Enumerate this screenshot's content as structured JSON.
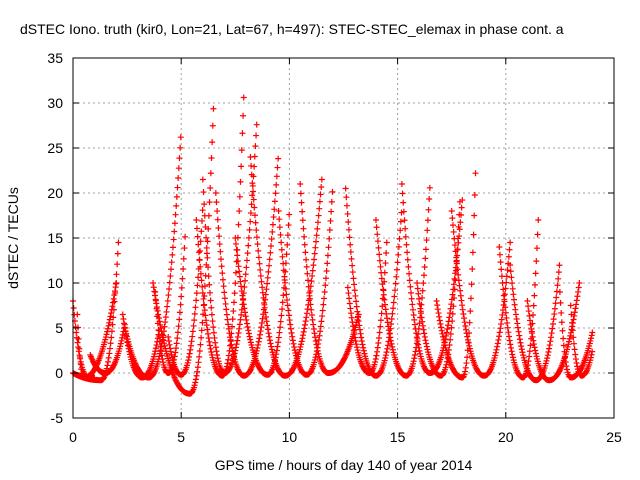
{
  "chart_data": {
    "type": "scatter",
    "title": "dSTEC Iono. truth (kir0, Lon=21, Lat=67, h=497): STEC-STEC_elemax in phase cont. a",
    "xlabel": "GPS time / hours of day 140 of year 2014",
    "ylabel": "dSTEC  / TECUs",
    "xlim": [
      0,
      25
    ],
    "ylim": [
      -5,
      35
    ],
    "xticks": [
      0,
      5,
      10,
      15,
      20,
      25
    ],
    "yticks": [
      -5,
      0,
      5,
      10,
      15,
      20,
      25,
      30,
      35
    ],
    "grid": true,
    "marker": "plus",
    "colors": {
      "series": "#ff0000",
      "grid": "#a0a0a0",
      "axis": "#000000"
    },
    "series": [
      {
        "name": "",
        "arcs": [
          {
            "start": 0.0,
            "end": 1.0,
            "peak_x": 0.7,
            "peak_y": 8.0,
            "min_y": -0.5
          },
          {
            "start": 0.0,
            "end": 2.1,
            "peak_x": 1.3,
            "peak_y": 0.0,
            "min_y": -0.8,
            "end_y": 14.5
          },
          {
            "start": 0.2,
            "end": 2.0,
            "peak_x": 0.5,
            "peak_y": 6.5,
            "min_y": -0.5,
            "end_y": 10.0
          },
          {
            "start": 0.8,
            "end": 2.4,
            "peak_x": 1.5,
            "peak_y": 0.5,
            "min_y": 0.0,
            "end_y": 5.5,
            "start_y": 2.0
          },
          {
            "start": 2.3,
            "end": 4.0,
            "peak_x": 3.2,
            "peak_y": 0.2,
            "min_y": -0.5,
            "start_y": 6.5,
            "end_y": 5.0
          },
          {
            "start": 2.4,
            "end": 5.0,
            "peak_x": 3.5,
            "peak_y": -0.3,
            "min_y": -0.5,
            "start_y": 5.0,
            "end_y": 27.0
          },
          {
            "start": 3.7,
            "end": 6.5,
            "peak_x": 5.4,
            "peak_y": -2.3,
            "min_y": -2.3,
            "start_y": 10.0,
            "end_y": 30.0
          },
          {
            "start": 3.8,
            "end": 5.2,
            "peak_x": 4.4,
            "peak_y": 0.2,
            "min_y": 0.0,
            "start_y": 9.0,
            "end_y": 16.0
          },
          {
            "start": 4.4,
            "end": 6.0,
            "peak_x": 5.0,
            "peak_y": 0.0,
            "min_y": -0.2,
            "start_y": 4.0,
            "end_y": 18.5
          },
          {
            "start": 5.7,
            "end": 7.9,
            "peak_x": 6.9,
            "peak_y": 0.0,
            "min_y": -0.3,
            "start_y": 17.0,
            "end_y": 31.3
          },
          {
            "start": 6.0,
            "end": 8.5,
            "peak_x": 7.0,
            "peak_y": 0.2,
            "min_y": 0.0,
            "start_y": 21.5,
            "end_y": 28.0
          },
          {
            "start": 6.6,
            "end": 9.5,
            "peak_x": 7.9,
            "peak_y": 0.0,
            "min_y": -0.3,
            "start_y": 20.0,
            "end_y": 24.5
          },
          {
            "start": 7.5,
            "end": 10.0,
            "peak_x": 9.0,
            "peak_y": 0.2,
            "min_y": -0.2,
            "start_y": 15.0,
            "end_y": 18.0
          },
          {
            "start": 8.2,
            "end": 11.5,
            "peak_x": 9.8,
            "peak_y": 0.0,
            "min_y": -0.3,
            "start_y": 24.0,
            "end_y": 21.5
          },
          {
            "start": 9.5,
            "end": 12.0,
            "peak_x": 10.8,
            "peak_y": 0.0,
            "min_y": -0.2,
            "start_y": 18.0,
            "end_y": 20.5
          },
          {
            "start": 10.5,
            "end": 13.2,
            "peak_x": 11.8,
            "peak_y": 0.2,
            "min_y": 0.0,
            "start_y": 21.0,
            "end_y": 6.5
          },
          {
            "start": 12.6,
            "end": 15.2,
            "peak_x": 14.0,
            "peak_y": 0.0,
            "min_y": -0.3,
            "start_y": 20.5,
            "end_y": 18.5
          },
          {
            "start": 12.7,
            "end": 14.5,
            "peak_x": 13.7,
            "peak_y": 0.3,
            "min_y": 0.0,
            "start_y": 9.5,
            "end_y": 14.5
          },
          {
            "start": 14.0,
            "end": 16.5,
            "peak_x": 15.4,
            "peak_y": 0.0,
            "min_y": -0.3,
            "start_y": 17.0,
            "end_y": 21.0
          },
          {
            "start": 15.2,
            "end": 18.0,
            "peak_x": 16.5,
            "peak_y": 0.2,
            "min_y": 0.0,
            "start_y": 21.0,
            "end_y": 19.5
          },
          {
            "start": 15.9,
            "end": 17.9,
            "peak_x": 17.0,
            "peak_y": 0.0,
            "min_y": -0.3,
            "start_y": 10.0,
            "end_y": 20.0
          },
          {
            "start": 16.8,
            "end": 18.6,
            "peak_x": 18.0,
            "peak_y": 0.2,
            "min_y": -0.5,
            "start_y": 8.0,
            "end_y": 22.2
          },
          {
            "start": 17.5,
            "end": 20.2,
            "peak_x": 19.0,
            "peak_y": 0.0,
            "min_y": -0.3,
            "start_y": 18.0,
            "end_y": 14.5
          },
          {
            "start": 19.7,
            "end": 21.5,
            "peak_x": 20.8,
            "peak_y": 0.0,
            "min_y": -0.5,
            "start_y": 14.0,
            "end_y": 17.0
          },
          {
            "start": 20.2,
            "end": 22.5,
            "peak_x": 21.4,
            "peak_y": -0.5,
            "min_y": -0.8,
            "start_y": 12.0,
            "end_y": 12.5
          },
          {
            "start": 21.0,
            "end": 23.4,
            "peak_x": 22.0,
            "peak_y": -0.5,
            "min_y": -0.8,
            "start_y": 8.0,
            "end_y": 10.0
          },
          {
            "start": 22.5,
            "end": 24.0,
            "peak_x": 23.0,
            "peak_y": 0.0,
            "min_y": -0.5,
            "start_y": 9.0,
            "end_y": 4.5
          },
          {
            "start": 23.0,
            "end": 24.0,
            "peak_x": 23.5,
            "peak_y": 0.0,
            "min_y": -0.3,
            "start_y": 7.5,
            "end_y": 2.5
          }
        ]
      }
    ]
  }
}
